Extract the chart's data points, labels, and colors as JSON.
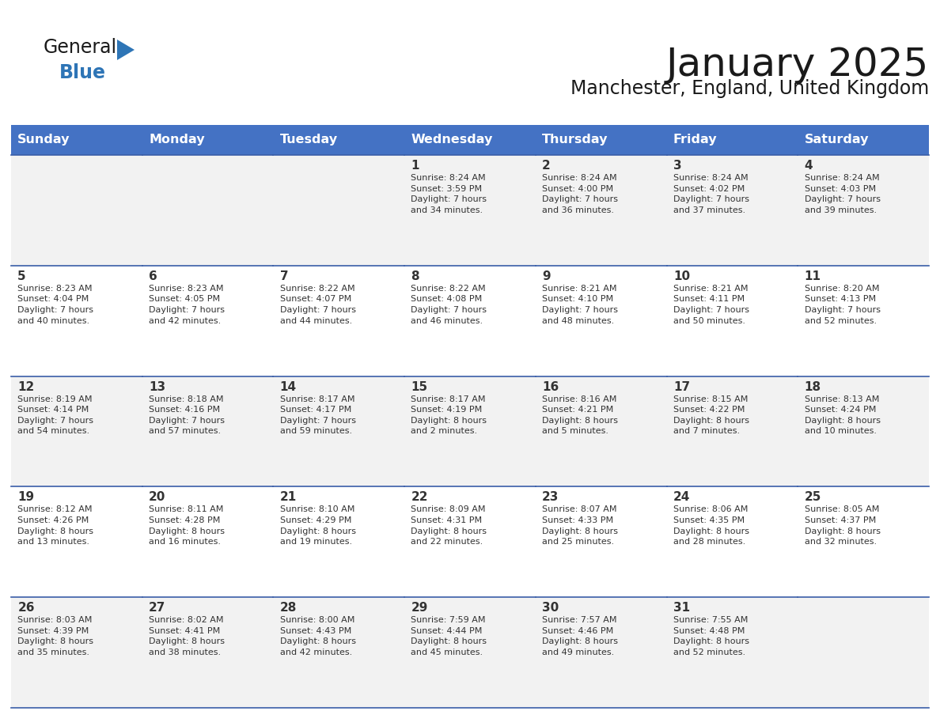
{
  "title": "January 2025",
  "subtitle": "Manchester, England, United Kingdom",
  "days_of_week": [
    "Sunday",
    "Monday",
    "Tuesday",
    "Wednesday",
    "Thursday",
    "Friday",
    "Saturday"
  ],
  "header_color": "#4472C4",
  "header_text_color": "#FFFFFF",
  "cell_bg_row0": "#F2F2F2",
  "cell_bg_row1": "#FFFFFF",
  "cell_bg_row2": "#F2F2F2",
  "cell_bg_row3": "#FFFFFF",
  "cell_bg_row4": "#F2F2F2",
  "line_color": "#3A5EA8",
  "text_color": "#333333",
  "title_color": "#1a1a1a",
  "logo_general_color": "#1a1a1a",
  "logo_blue_color": "#2E75B6",
  "calendar_data": [
    [
      {
        "day": null,
        "info": null
      },
      {
        "day": null,
        "info": null
      },
      {
        "day": null,
        "info": null
      },
      {
        "day": 1,
        "info": "Sunrise: 8:24 AM\nSunset: 3:59 PM\nDaylight: 7 hours\nand 34 minutes."
      },
      {
        "day": 2,
        "info": "Sunrise: 8:24 AM\nSunset: 4:00 PM\nDaylight: 7 hours\nand 36 minutes."
      },
      {
        "day": 3,
        "info": "Sunrise: 8:24 AM\nSunset: 4:02 PM\nDaylight: 7 hours\nand 37 minutes."
      },
      {
        "day": 4,
        "info": "Sunrise: 8:24 AM\nSunset: 4:03 PM\nDaylight: 7 hours\nand 39 minutes."
      }
    ],
    [
      {
        "day": 5,
        "info": "Sunrise: 8:23 AM\nSunset: 4:04 PM\nDaylight: 7 hours\nand 40 minutes."
      },
      {
        "day": 6,
        "info": "Sunrise: 8:23 AM\nSunset: 4:05 PM\nDaylight: 7 hours\nand 42 minutes."
      },
      {
        "day": 7,
        "info": "Sunrise: 8:22 AM\nSunset: 4:07 PM\nDaylight: 7 hours\nand 44 minutes."
      },
      {
        "day": 8,
        "info": "Sunrise: 8:22 AM\nSunset: 4:08 PM\nDaylight: 7 hours\nand 46 minutes."
      },
      {
        "day": 9,
        "info": "Sunrise: 8:21 AM\nSunset: 4:10 PM\nDaylight: 7 hours\nand 48 minutes."
      },
      {
        "day": 10,
        "info": "Sunrise: 8:21 AM\nSunset: 4:11 PM\nDaylight: 7 hours\nand 50 minutes."
      },
      {
        "day": 11,
        "info": "Sunrise: 8:20 AM\nSunset: 4:13 PM\nDaylight: 7 hours\nand 52 minutes."
      }
    ],
    [
      {
        "day": 12,
        "info": "Sunrise: 8:19 AM\nSunset: 4:14 PM\nDaylight: 7 hours\nand 54 minutes."
      },
      {
        "day": 13,
        "info": "Sunrise: 8:18 AM\nSunset: 4:16 PM\nDaylight: 7 hours\nand 57 minutes."
      },
      {
        "day": 14,
        "info": "Sunrise: 8:17 AM\nSunset: 4:17 PM\nDaylight: 7 hours\nand 59 minutes."
      },
      {
        "day": 15,
        "info": "Sunrise: 8:17 AM\nSunset: 4:19 PM\nDaylight: 8 hours\nand 2 minutes."
      },
      {
        "day": 16,
        "info": "Sunrise: 8:16 AM\nSunset: 4:21 PM\nDaylight: 8 hours\nand 5 minutes."
      },
      {
        "day": 17,
        "info": "Sunrise: 8:15 AM\nSunset: 4:22 PM\nDaylight: 8 hours\nand 7 minutes."
      },
      {
        "day": 18,
        "info": "Sunrise: 8:13 AM\nSunset: 4:24 PM\nDaylight: 8 hours\nand 10 minutes."
      }
    ],
    [
      {
        "day": 19,
        "info": "Sunrise: 8:12 AM\nSunset: 4:26 PM\nDaylight: 8 hours\nand 13 minutes."
      },
      {
        "day": 20,
        "info": "Sunrise: 8:11 AM\nSunset: 4:28 PM\nDaylight: 8 hours\nand 16 minutes."
      },
      {
        "day": 21,
        "info": "Sunrise: 8:10 AM\nSunset: 4:29 PM\nDaylight: 8 hours\nand 19 minutes."
      },
      {
        "day": 22,
        "info": "Sunrise: 8:09 AM\nSunset: 4:31 PM\nDaylight: 8 hours\nand 22 minutes."
      },
      {
        "day": 23,
        "info": "Sunrise: 8:07 AM\nSunset: 4:33 PM\nDaylight: 8 hours\nand 25 minutes."
      },
      {
        "day": 24,
        "info": "Sunrise: 8:06 AM\nSunset: 4:35 PM\nDaylight: 8 hours\nand 28 minutes."
      },
      {
        "day": 25,
        "info": "Sunrise: 8:05 AM\nSunset: 4:37 PM\nDaylight: 8 hours\nand 32 minutes."
      }
    ],
    [
      {
        "day": 26,
        "info": "Sunrise: 8:03 AM\nSunset: 4:39 PM\nDaylight: 8 hours\nand 35 minutes."
      },
      {
        "day": 27,
        "info": "Sunrise: 8:02 AM\nSunset: 4:41 PM\nDaylight: 8 hours\nand 38 minutes."
      },
      {
        "day": 28,
        "info": "Sunrise: 8:00 AM\nSunset: 4:43 PM\nDaylight: 8 hours\nand 42 minutes."
      },
      {
        "day": 29,
        "info": "Sunrise: 7:59 AM\nSunset: 4:44 PM\nDaylight: 8 hours\nand 45 minutes."
      },
      {
        "day": 30,
        "info": "Sunrise: 7:57 AM\nSunset: 4:46 PM\nDaylight: 8 hours\nand 49 minutes."
      },
      {
        "day": 31,
        "info": "Sunrise: 7:55 AM\nSunset: 4:48 PM\nDaylight: 8 hours\nand 52 minutes."
      },
      {
        "day": null,
        "info": null
      }
    ]
  ],
  "cell_bg_colors": [
    "#F2F2F2",
    "#FFFFFF",
    "#F2F2F2",
    "#FFFFFF",
    "#F2F2F2"
  ]
}
